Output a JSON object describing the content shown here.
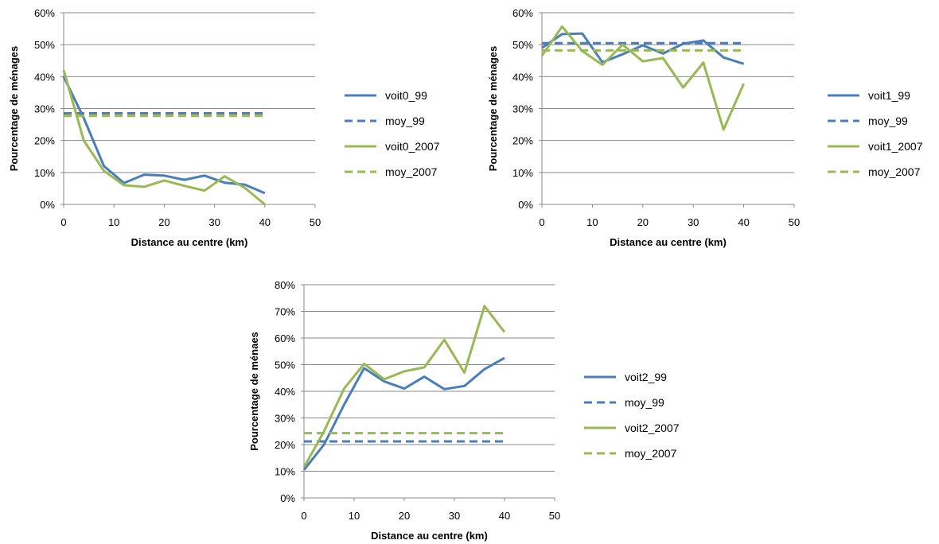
{
  "chart_data": [
    {
      "type": "line",
      "title": "",
      "xlabel": "Distance au centre (km)",
      "ylabel": "Pourcentage de ménages",
      "xlim": [
        0,
        50
      ],
      "ylim": [
        0,
        0.6
      ],
      "xticks": [
        0,
        10,
        20,
        30,
        40,
        50
      ],
      "yticks": [
        0,
        0.1,
        0.2,
        0.3,
        0.4,
        0.5,
        0.6
      ],
      "ytick_labels": [
        "0%",
        "10%",
        "20%",
        "30%",
        "40%",
        "50%",
        "60%"
      ],
      "grid": "horizontal",
      "legend_position": "right",
      "x": [
        0,
        4,
        8,
        12,
        16,
        20,
        24,
        28,
        32,
        36,
        40
      ],
      "series": [
        {
          "name": "voit0_99",
          "color": "#4a7ebb",
          "dash": false,
          "values": [
            0.4,
            0.27,
            0.12,
            0.067,
            0.093,
            0.09,
            0.077,
            0.09,
            0.068,
            0.062,
            0.035
          ]
        },
        {
          "name": "moy_99",
          "color": "#4a7ebb",
          "dash": true,
          "values": [
            0.285,
            0.285,
            0.285,
            0.285,
            0.285,
            0.285,
            0.285,
            0.285,
            0.285,
            0.285,
            0.285
          ]
        },
        {
          "name": "voit0_2007",
          "color": "#98b954",
          "dash": false,
          "values": [
            0.42,
            0.2,
            0.105,
            0.06,
            0.055,
            0.075,
            0.058,
            0.043,
            0.088,
            0.052,
            0.0
          ]
        },
        {
          "name": "moy_2007",
          "color": "#98b954",
          "dash": true,
          "values": [
            0.277,
            0.277,
            0.277,
            0.277,
            0.277,
            0.277,
            0.277,
            0.277,
            0.277,
            0.277,
            0.277
          ]
        }
      ]
    },
    {
      "type": "line",
      "title": "",
      "xlabel": "Distance au centre (km)",
      "ylabel": "Pourcentage de ménages",
      "xlim": [
        0,
        50
      ],
      "ylim": [
        0,
        0.6
      ],
      "xticks": [
        0,
        10,
        20,
        30,
        40,
        50
      ],
      "yticks": [
        0,
        0.1,
        0.2,
        0.3,
        0.4,
        0.5,
        0.6
      ],
      "ytick_labels": [
        "0%",
        "10%",
        "20%",
        "30%",
        "40%",
        "50%",
        "60%"
      ],
      "grid": "horizontal",
      "legend_position": "right",
      "x": [
        0,
        4,
        8,
        12,
        16,
        20,
        24,
        28,
        32,
        36,
        40
      ],
      "series": [
        {
          "name": "voit1_99",
          "color": "#4a7ebb",
          "dash": false,
          "values": [
            0.49,
            0.533,
            0.535,
            0.445,
            0.47,
            0.498,
            0.472,
            0.503,
            0.513,
            0.46,
            0.44
          ]
        },
        {
          "name": "moy_99",
          "color": "#4a7ebb",
          "dash": true,
          "values": [
            0.505,
            0.505,
            0.505,
            0.505,
            0.505,
            0.505,
            0.505,
            0.505,
            0.505,
            0.505,
            0.505
          ]
        },
        {
          "name": "voit1_2007",
          "color": "#98b954",
          "dash": false,
          "values": [
            0.465,
            0.557,
            0.48,
            0.437,
            0.5,
            0.448,
            0.458,
            0.366,
            0.444,
            0.234,
            0.378
          ]
        },
        {
          "name": "moy_2007",
          "color": "#98b954",
          "dash": true,
          "values": [
            0.482,
            0.482,
            0.482,
            0.482,
            0.482,
            0.482,
            0.482,
            0.482,
            0.482,
            0.482,
            0.482
          ]
        }
      ]
    },
    {
      "type": "line",
      "title": "",
      "xlabel": "Distance au centre (km)",
      "ylabel": "Pourcentage de ménaes",
      "xlim": [
        0,
        50
      ],
      "ylim": [
        0,
        0.8
      ],
      "xticks": [
        0,
        10,
        20,
        30,
        40,
        50
      ],
      "yticks": [
        0,
        0.1,
        0.2,
        0.3,
        0.4,
        0.5,
        0.6,
        0.7,
        0.8
      ],
      "ytick_labels": [
        "0%",
        "10%",
        "20%",
        "30%",
        "40%",
        "50%",
        "60%",
        "70%",
        "80%"
      ],
      "grid": "horizontal",
      "legend_position": "right",
      "x": [
        0,
        4,
        8,
        12,
        16,
        20,
        24,
        28,
        32,
        36,
        40
      ],
      "series": [
        {
          "name": "voit2_99",
          "color": "#4a7ebb",
          "dash": false,
          "values": [
            0.105,
            0.2,
            0.35,
            0.487,
            0.437,
            0.41,
            0.455,
            0.408,
            0.42,
            0.483,
            0.525
          ]
        },
        {
          "name": "moy_99",
          "color": "#4a7ebb",
          "dash": true,
          "values": [
            0.212,
            0.212,
            0.212,
            0.212,
            0.212,
            0.212,
            0.212,
            0.212,
            0.212,
            0.212,
            0.212
          ]
        },
        {
          "name": "voit2_2007",
          "color": "#98b954",
          "dash": false,
          "values": [
            0.115,
            0.25,
            0.41,
            0.503,
            0.445,
            0.475,
            0.49,
            0.593,
            0.47,
            0.72,
            0.622
          ]
        },
        {
          "name": "moy_2007",
          "color": "#98b954",
          "dash": true,
          "values": [
            0.243,
            0.243,
            0.243,
            0.243,
            0.243,
            0.243,
            0.243,
            0.243,
            0.243,
            0.243,
            0.243
          ]
        }
      ]
    }
  ]
}
